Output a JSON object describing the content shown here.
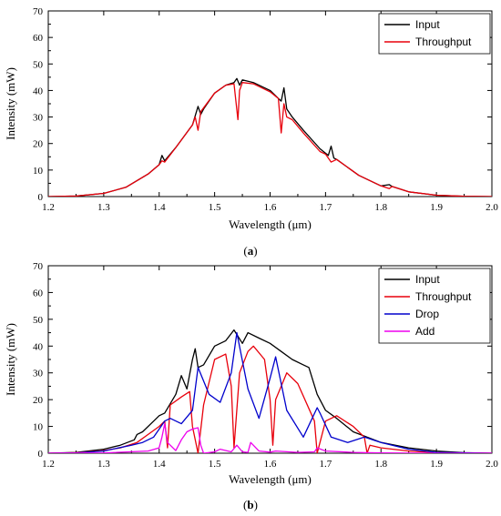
{
  "chart_data": [
    {
      "type": "line",
      "panel_label": "(a)",
      "caption_letter": "a",
      "xlabel": "Wavelength (μm)",
      "ylabel": "Intensity (mW)",
      "xlim": [
        1.2,
        2.0
      ],
      "ylim": [
        0,
        70
      ],
      "xticks": [
        "1.2",
        "1.3",
        "1.4",
        "1.5",
        "1.6",
        "1.7",
        "1.8",
        "1.9",
        "2.0"
      ],
      "yticks": [
        "0",
        "10",
        "20",
        "30",
        "40",
        "50",
        "60",
        "70"
      ],
      "legend_position": "top-right",
      "grid": false,
      "series": [
        {
          "name": "Input",
          "color": "#000000",
          "x": [
            1.2,
            1.25,
            1.3,
            1.34,
            1.38,
            1.4,
            1.405,
            1.41,
            1.43,
            1.46,
            1.47,
            1.475,
            1.48,
            1.5,
            1.52,
            1.535,
            1.54,
            1.545,
            1.55,
            1.57,
            1.6,
            1.615,
            1.62,
            1.625,
            1.63,
            1.64,
            1.66,
            1.69,
            1.705,
            1.71,
            1.715,
            1.72,
            1.76,
            1.8,
            1.815,
            1.82,
            1.85,
            1.9,
            1.95,
            2.0
          ],
          "y": [
            0,
            0.2,
            1.2,
            3.5,
            8.5,
            12,
            15.5,
            13.5,
            18.5,
            27,
            34,
            31,
            33,
            39,
            42,
            43,
            44.5,
            42,
            44,
            43,
            40,
            37,
            36,
            41,
            33,
            30,
            25,
            18,
            15.5,
            19,
            14.5,
            14,
            8,
            4,
            4.5,
            3.8,
            1.8,
            0.5,
            0.1,
            0
          ]
        },
        {
          "name": "Throughput",
          "color": "#e8000b",
          "x": [
            1.2,
            1.25,
            1.3,
            1.34,
            1.38,
            1.4,
            1.405,
            1.41,
            1.43,
            1.46,
            1.465,
            1.47,
            1.475,
            1.5,
            1.52,
            1.535,
            1.542,
            1.545,
            1.55,
            1.57,
            1.6,
            1.615,
            1.62,
            1.625,
            1.63,
            1.64,
            1.66,
            1.69,
            1.7,
            1.71,
            1.72,
            1.76,
            1.8,
            1.815,
            1.82,
            1.85,
            1.9,
            1.95,
            2.0
          ],
          "y": [
            0,
            0.2,
            1.2,
            3.5,
            8.5,
            12,
            13.5,
            13,
            18.5,
            27,
            30,
            25,
            32,
            39,
            42,
            42.5,
            29,
            40,
            43,
            42.5,
            39.5,
            37,
            24,
            35,
            30,
            29,
            24,
            17,
            16,
            13,
            14,
            8,
            4,
            3,
            3.8,
            1.8,
            0.5,
            0.1,
            0
          ]
        }
      ]
    },
    {
      "type": "line",
      "panel_label": "(b)",
      "caption_letter": "b",
      "xlabel": "Wavelength (μm)",
      "ylabel": "Intensity (mW)",
      "xlim": [
        1.2,
        2.0
      ],
      "ylim": [
        0,
        70
      ],
      "xticks": [
        "1.2",
        "1.3",
        "1.4",
        "1.5",
        "1.6",
        "1.7",
        "1.8",
        "1.9",
        "2.0"
      ],
      "yticks": [
        "0",
        "10",
        "20",
        "30",
        "40",
        "50",
        "60",
        "70"
      ],
      "legend_position": "top-right",
      "grid": false,
      "series": [
        {
          "name": "Input",
          "color": "#000000",
          "x": [
            1.2,
            1.25,
            1.3,
            1.33,
            1.355,
            1.36,
            1.37,
            1.39,
            1.4,
            1.41,
            1.43,
            1.44,
            1.45,
            1.46,
            1.465,
            1.47,
            1.48,
            1.5,
            1.52,
            1.535,
            1.55,
            1.56,
            1.58,
            1.6,
            1.62,
            1.64,
            1.66,
            1.67,
            1.685,
            1.7,
            1.72,
            1.75,
            1.8,
            1.85,
            1.9,
            1.95,
            2.0
          ],
          "y": [
            0,
            0.3,
            1.5,
            3,
            5,
            7,
            8,
            12,
            14,
            15,
            22,
            29,
            24,
            35,
            39,
            32,
            33,
            40,
            42,
            46,
            41,
            45,
            43,
            41,
            38,
            35,
            33,
            32,
            22,
            16,
            13,
            8,
            4,
            2,
            0.8,
            0.2,
            0
          ]
        },
        {
          "name": "Throughput",
          "color": "#e8000b",
          "x": [
            1.2,
            1.25,
            1.3,
            1.33,
            1.36,
            1.38,
            1.4,
            1.41,
            1.415,
            1.42,
            1.44,
            1.455,
            1.46,
            1.47,
            1.48,
            1.5,
            1.52,
            1.53,
            1.535,
            1.545,
            1.56,
            1.57,
            1.59,
            1.6,
            1.605,
            1.61,
            1.63,
            1.65,
            1.68,
            1.685,
            1.7,
            1.72,
            1.75,
            1.77,
            1.775,
            1.78,
            1.8,
            1.85,
            1.9,
            2.0
          ],
          "y": [
            0,
            0.2,
            1,
            2,
            4,
            7,
            10,
            12,
            2,
            18,
            21,
            23,
            10,
            0,
            18,
            35,
            37,
            25,
            2,
            30,
            38,
            40,
            35,
            20,
            3,
            20,
            30,
            26,
            12,
            0,
            12,
            14,
            10,
            6,
            0,
            3,
            2,
            0.8,
            0.2,
            0
          ]
        },
        {
          "name": "Drop",
          "color": "#0000cc",
          "x": [
            1.2,
            1.25,
            1.3,
            1.35,
            1.37,
            1.39,
            1.41,
            1.42,
            1.44,
            1.46,
            1.47,
            1.49,
            1.51,
            1.53,
            1.54,
            1.56,
            1.58,
            1.6,
            1.61,
            1.63,
            1.66,
            1.685,
            1.69,
            1.71,
            1.74,
            1.77,
            1.8,
            1.85,
            1.9,
            2.0
          ],
          "y": [
            0,
            0.1,
            0.8,
            3,
            4,
            6,
            12,
            13,
            11,
            16,
            32,
            22,
            19,
            30,
            45,
            24,
            13,
            28,
            36,
            16,
            6,
            17,
            15,
            6,
            4,
            6,
            4,
            1.5,
            0.3,
            0
          ]
        },
        {
          "name": "Add",
          "color": "#ee00ee",
          "x": [
            1.2,
            1.3,
            1.38,
            1.4,
            1.405,
            1.41,
            1.415,
            1.42,
            1.43,
            1.44,
            1.45,
            1.46,
            1.47,
            1.475,
            1.48,
            1.5,
            1.51,
            1.53,
            1.54,
            1.55,
            1.56,
            1.565,
            1.58,
            1.6,
            1.61,
            1.65,
            1.68,
            1.685,
            1.7,
            1.75,
            1.8,
            1.9,
            2.0
          ],
          "y": [
            0,
            0.1,
            0.8,
            2,
            6,
            11,
            4,
            3,
            1,
            5,
            8,
            9,
            9.5,
            3,
            0,
            0.5,
            1.5,
            0.5,
            3,
            0.5,
            0.3,
            4,
            0.8,
            0.4,
            0.8,
            0.3,
            0.5,
            2,
            0.8,
            0.3,
            0.1,
            0,
            0
          ]
        }
      ]
    }
  ]
}
